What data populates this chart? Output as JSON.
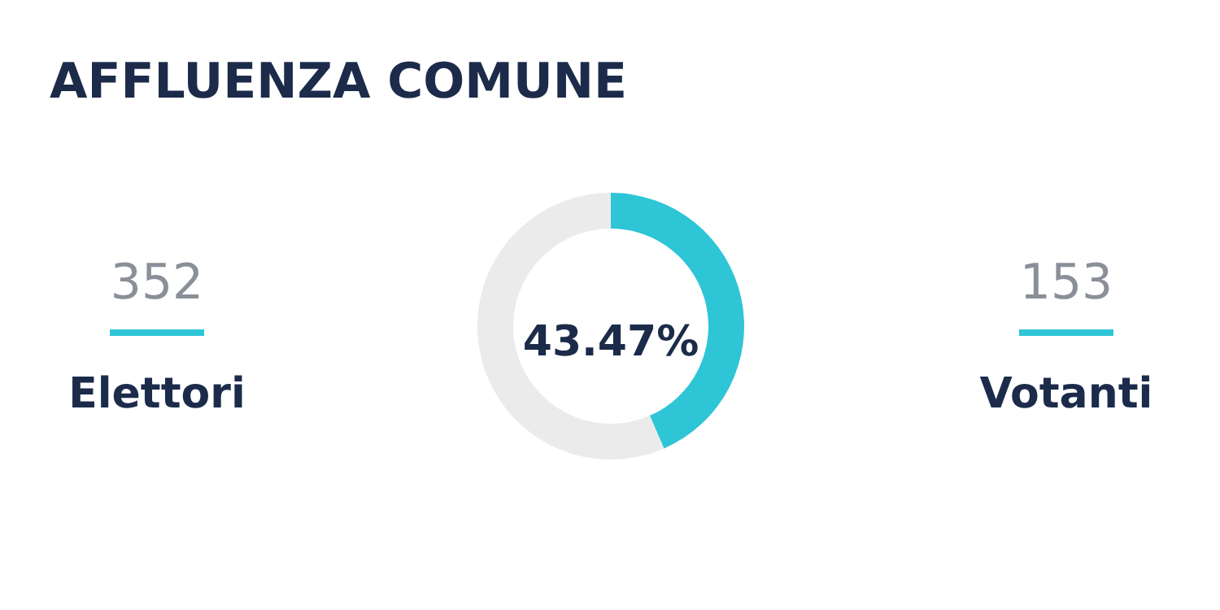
{
  "chart_data": {
    "type": "donut",
    "title": "AFFLUENZA COMUNE",
    "categories": [
      null,
      null
    ],
    "values": [
      43.47,
      56.53
    ],
    "colors": [
      "#2ec5d6",
      "#ebebeb"
    ],
    "annotations": [
      "43.47%",
      "352",
      "Elettori",
      "153",
      "Votanti"
    ]
  }
}
